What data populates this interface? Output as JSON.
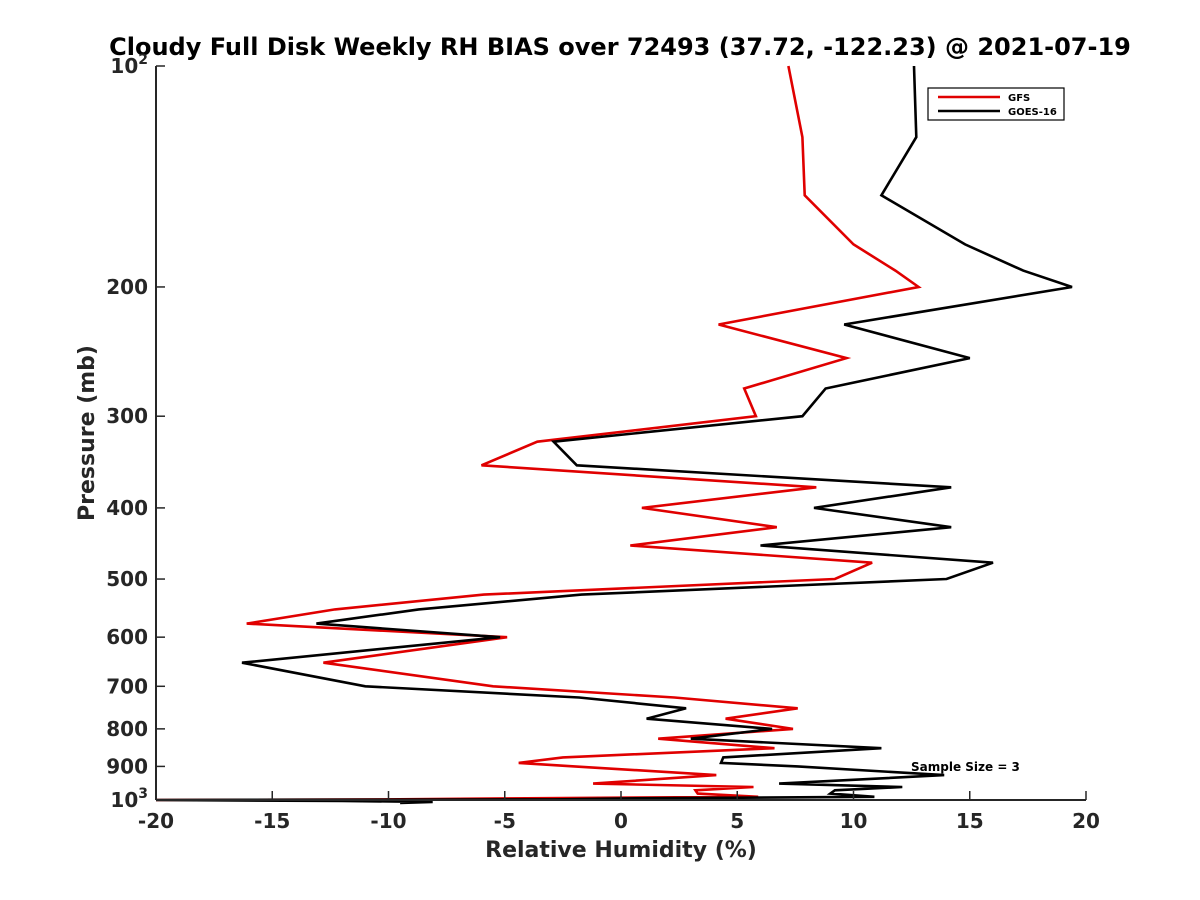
{
  "chart_data": {
    "type": "line",
    "title": "Cloudy Full Disk Weekly RH BIAS over 72493 (37.72, -122.23) @ 2021-07-19",
    "xlabel": "Relative Humidity (%)",
    "ylabel": "Pressure (mb)",
    "xlim": [
      -20,
      20
    ],
    "ylim": [
      100,
      1000
    ],
    "yscale": "log",
    "y_reversed": true,
    "grid": false,
    "legend_position": "top-right",
    "x_ticks": [
      -20,
      -15,
      -10,
      -5,
      0,
      5,
      10,
      15,
      20
    ],
    "x_tick_labels": [
      "-20",
      "-15",
      "-10",
      "-5",
      "0",
      "5",
      "10",
      "15",
      "20"
    ],
    "y_ticks": [
      {
        "value": 100,
        "base": "10",
        "exp": "2"
      },
      {
        "value": 200,
        "label": "200"
      },
      {
        "value": 300,
        "label": "300"
      },
      {
        "value": 400,
        "label": "400"
      },
      {
        "value": 500,
        "label": "500"
      },
      {
        "value": 600,
        "label": "600"
      },
      {
        "value": 700,
        "label": "700"
      },
      {
        "value": 800,
        "label": "800"
      },
      {
        "value": 900,
        "label": "900"
      },
      {
        "value": 1000,
        "base": "10",
        "exp": "3"
      }
    ],
    "annotation": "Sample Size = 3",
    "series": [
      {
        "name": "GFS",
        "color": "#e00000",
        "points": [
          [
            7.2,
            100
          ],
          [
            7.8,
            125
          ],
          [
            7.9,
            150
          ],
          [
            10.0,
            175
          ],
          [
            11.8,
            190
          ],
          [
            12.8,
            200
          ],
          [
            4.2,
            225
          ],
          [
            9.7,
            250
          ],
          [
            5.3,
            275
          ],
          [
            5.8,
            300
          ],
          [
            -3.6,
            325
          ],
          [
            -6.0,
            350
          ],
          [
            8.4,
            375
          ],
          [
            0.9,
            400
          ],
          [
            6.7,
            425
          ],
          [
            0.4,
            450
          ],
          [
            10.8,
            475
          ],
          [
            9.2,
            500
          ],
          [
            -5.9,
            525
          ],
          [
            -12.3,
            550
          ],
          [
            -16.1,
            575
          ],
          [
            -4.9,
            600
          ],
          [
            -12.8,
            650
          ],
          [
            -5.5,
            700
          ],
          [
            2.3,
            725
          ],
          [
            7.6,
            750
          ],
          [
            4.5,
            775
          ],
          [
            7.4,
            800
          ],
          [
            1.6,
            825
          ],
          [
            6.6,
            850
          ],
          [
            -2.5,
            875
          ],
          [
            -4.4,
            890
          ],
          [
            -2.0,
            900
          ],
          [
            4.1,
            925
          ],
          [
            -1.2,
            950
          ],
          [
            5.7,
            960
          ],
          [
            3.2,
            970
          ],
          [
            3.3,
            980
          ],
          [
            5.9,
            990
          ],
          [
            -5.0,
            995
          ],
          [
            -10.2,
            998
          ],
          [
            -20.0,
            1000
          ]
        ]
      },
      {
        "name": "GOES-16",
        "color": "#000000",
        "points": [
          [
            12.6,
            100
          ],
          [
            12.7,
            125
          ],
          [
            11.2,
            150
          ],
          [
            14.8,
            175
          ],
          [
            17.3,
            190
          ],
          [
            19.4,
            200
          ],
          [
            9.6,
            225
          ],
          [
            15.0,
            250
          ],
          [
            8.8,
            275
          ],
          [
            7.8,
            300
          ],
          [
            -2.9,
            325
          ],
          [
            -1.9,
            350
          ],
          [
            14.2,
            375
          ],
          [
            8.3,
            400
          ],
          [
            14.2,
            425
          ],
          [
            6.0,
            450
          ],
          [
            16.0,
            475
          ],
          [
            14.0,
            500
          ],
          [
            -1.7,
            525
          ],
          [
            -8.7,
            550
          ],
          [
            -13.1,
            575
          ],
          [
            -5.2,
            600
          ],
          [
            -16.3,
            650
          ],
          [
            -11.0,
            700
          ],
          [
            -1.8,
            725
          ],
          [
            2.8,
            750
          ],
          [
            1.1,
            775
          ],
          [
            6.5,
            800
          ],
          [
            3.0,
            825
          ],
          [
            11.2,
            850
          ],
          [
            4.4,
            875
          ],
          [
            4.3,
            890
          ],
          [
            7.6,
            900
          ],
          [
            13.9,
            925
          ],
          [
            6.8,
            950
          ],
          [
            12.1,
            960
          ],
          [
            9.2,
            970
          ],
          [
            9.0,
            980
          ],
          [
            10.9,
            990
          ],
          [
            0.2,
            995
          ],
          [
            -2.9,
            998
          ],
          [
            -20.0,
            1000
          ],
          [
            -12.0,
            1003
          ],
          [
            -8.1,
            1006
          ],
          [
            -9.5,
            1009
          ]
        ]
      }
    ]
  }
}
